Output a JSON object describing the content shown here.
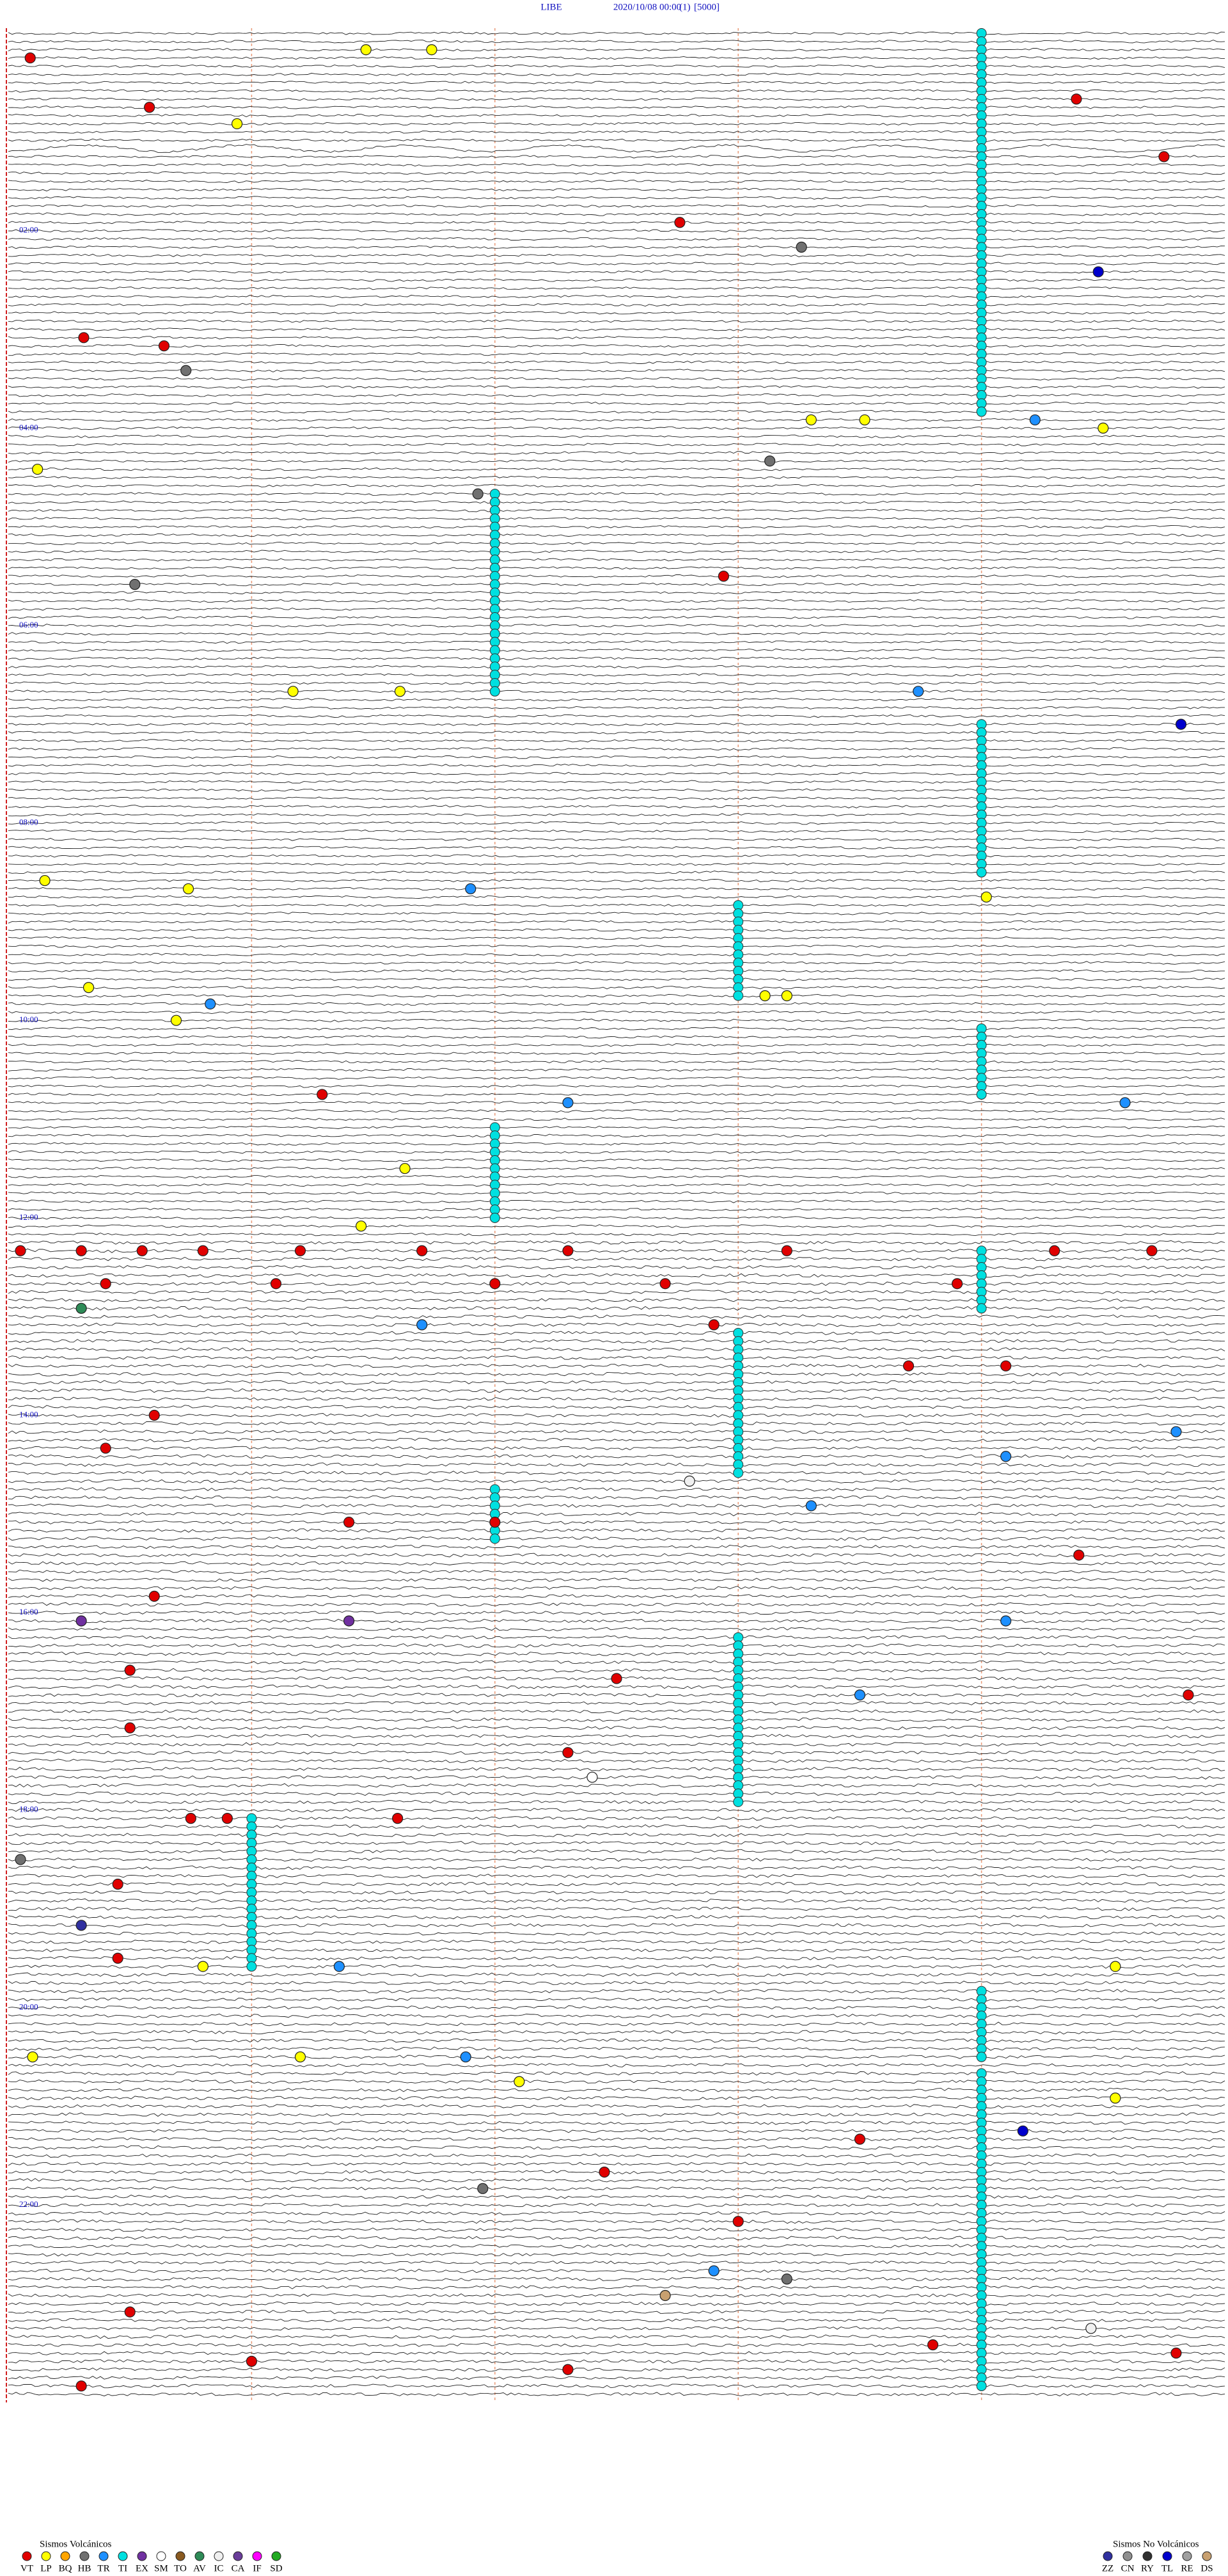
{
  "header": {
    "station": "LIBE",
    "datetime": "2020/10/08 00:00",
    "channel": "(1)",
    "scale": "[5000]"
  },
  "hour_labels": [
    {
      "row": 24,
      "label": "02:00"
    },
    {
      "row": 48,
      "label": "04:00"
    },
    {
      "row": 72,
      "label": "06:00"
    },
    {
      "row": 96,
      "label": "08:00"
    },
    {
      "row": 120,
      "label": "10:00"
    },
    {
      "row": 144,
      "label": "12:00"
    },
    {
      "row": 168,
      "label": "14:00"
    },
    {
      "row": 192,
      "label": "16:00"
    },
    {
      "row": 216,
      "label": "18:00"
    },
    {
      "row": 240,
      "label": "20:00"
    },
    {
      "row": 264,
      "label": "22:00"
    }
  ],
  "legend": {
    "volcanic": {
      "title": "Sismos Volcánicos",
      "items": [
        {
          "code": "VT",
          "color": "#e00000"
        },
        {
          "code": "LP",
          "color": "#ffff00"
        },
        {
          "code": "BQ",
          "color": "#ffa500"
        },
        {
          "code": "HB",
          "color": "#707070"
        },
        {
          "code": "TR",
          "color": "#1e90ff"
        },
        {
          "code": "TI",
          "color": "#00e0e0"
        },
        {
          "code": "EX",
          "color": "#7030a0"
        },
        {
          "code": "SM",
          "color": "#ffffff"
        },
        {
          "code": "TO",
          "color": "#8a5a20"
        },
        {
          "code": "AV",
          "color": "#2e8b57"
        },
        {
          "code": "IC",
          "color": "#f0f0f0"
        },
        {
          "code": "CA",
          "color": "#6a3d9a"
        },
        {
          "code": "IF",
          "color": "#ff00ff"
        },
        {
          "code": "SD",
          "color": "#22aa22"
        }
      ]
    },
    "non_volcanic": {
      "title": "Sismos No Volcánicos",
      "items": [
        {
          "code": "ZZ",
          "color": "#3030a0"
        },
        {
          "code": "CN",
          "color": "#909090"
        },
        {
          "code": "RY",
          "color": "#303030"
        },
        {
          "code": "TL",
          "color": "#0000cc"
        },
        {
          "code": "RE",
          "color": "#a0a0a0"
        },
        {
          "code": "DS",
          "color": "#c8a070"
        }
      ]
    }
  },
  "tremor_runs": [
    {
      "minute": 4.0,
      "row_start": 0,
      "row_end": 46
    },
    {
      "minute": 2.0,
      "row_start": 56,
      "row_end": 80
    },
    {
      "minute": 4.0,
      "row_start": 84,
      "row_end": 102
    },
    {
      "minute": 3.0,
      "row_start": 106,
      "row_end": 117
    },
    {
      "minute": 4.0,
      "row_start": 121,
      "row_end": 129
    },
    {
      "minute": 2.0,
      "row_start": 133,
      "row_end": 144
    },
    {
      "minute": 4.0,
      "row_start": 148,
      "row_end": 155
    },
    {
      "minute": 3.0,
      "row_start": 158,
      "row_end": 175
    },
    {
      "minute": 2.0,
      "row_start": 177,
      "row_end": 183
    },
    {
      "minute": 3.0,
      "row_start": 195,
      "row_end": 215
    },
    {
      "minute": 1.0,
      "row_start": 217,
      "row_end": 235
    },
    {
      "minute": 4.0,
      "row_start": 238,
      "row_end": 246
    },
    {
      "minute": 4.0,
      "row_start": 248,
      "row_end": 286
    }
  ],
  "events": [
    {
      "row": 3,
      "minute": 0.09,
      "type": "VT"
    },
    {
      "row": 2,
      "minute": 1.47,
      "type": "LP"
    },
    {
      "row": 2,
      "minute": 1.74,
      "type": "LP"
    },
    {
      "row": 9,
      "minute": 0.58,
      "type": "VT"
    },
    {
      "row": 11,
      "minute": 0.94,
      "type": "LP"
    },
    {
      "row": 8,
      "minute": 4.39,
      "type": "VT"
    },
    {
      "row": 15,
      "minute": 4.75,
      "type": "VT"
    },
    {
      "row": 23,
      "minute": 2.76,
      "type": "VT"
    },
    {
      "row": 26,
      "minute": 3.26,
      "type": "HB"
    },
    {
      "row": 29,
      "minute": 4.48,
      "type": "TL"
    },
    {
      "row": 37,
      "minute": 0.31,
      "type": "VT"
    },
    {
      "row": 38,
      "minute": 0.64,
      "type": "VT"
    },
    {
      "row": 41,
      "minute": 0.73,
      "type": "HB"
    },
    {
      "row": 47,
      "minute": 3.3,
      "type": "LP"
    },
    {
      "row": 47,
      "minute": 3.52,
      "type": "LP"
    },
    {
      "row": 47,
      "minute": 4.22,
      "type": "TR"
    },
    {
      "row": 48,
      "minute": 4.5,
      "type": "LP"
    },
    {
      "row": 53,
      "minute": 0.12,
      "type": "LP"
    },
    {
      "row": 52,
      "minute": 3.13,
      "type": "HB"
    },
    {
      "row": 56,
      "minute": 1.93,
      "type": "HB"
    },
    {
      "row": 67,
      "minute": 0.52,
      "type": "HB"
    },
    {
      "row": 66,
      "minute": 2.94,
      "type": "VT"
    },
    {
      "row": 80,
      "minute": 1.17,
      "type": "LP"
    },
    {
      "row": 80,
      "minute": 1.61,
      "type": "LP"
    },
    {
      "row": 80,
      "minute": 3.74,
      "type": "TR"
    },
    {
      "row": 84,
      "minute": 4.82,
      "type": "TL"
    },
    {
      "row": 103,
      "minute": 0.15,
      "type": "LP"
    },
    {
      "row": 104,
      "minute": 0.74,
      "type": "LP"
    },
    {
      "row": 104,
      "minute": 1.9,
      "type": "TR"
    },
    {
      "row": 105,
      "minute": 4.02,
      "type": "LP"
    },
    {
      "row": 116,
      "minute": 0.33,
      "type": "LP"
    },
    {
      "row": 118,
      "minute": 0.83,
      "type": "TR"
    },
    {
      "row": 117,
      "minute": 3.11,
      "type": "LP"
    },
    {
      "row": 117,
      "minute": 3.2,
      "type": "LP"
    },
    {
      "row": 120,
      "minute": 0.69,
      "type": "LP"
    },
    {
      "row": 129,
      "minute": 1.29,
      "type": "VT"
    },
    {
      "row": 130,
      "minute": 2.3,
      "type": "TR"
    },
    {
      "row": 130,
      "minute": 4.59,
      "type": "TR"
    },
    {
      "row": 138,
      "minute": 1.63,
      "type": "LP"
    },
    {
      "row": 145,
      "minute": 1.45,
      "type": "LP"
    },
    {
      "row": 148,
      "minute": 0.05,
      "type": "VT"
    },
    {
      "row": 148,
      "minute": 0.3,
      "type": "VT"
    },
    {
      "row": 148,
      "minute": 0.55,
      "type": "VT"
    },
    {
      "row": 148,
      "minute": 0.8,
      "type": "VT"
    },
    {
      "row": 148,
      "minute": 1.2,
      "type": "VT"
    },
    {
      "row": 148,
      "minute": 1.7,
      "type": "VT"
    },
    {
      "row": 148,
      "minute": 2.3,
      "type": "VT"
    },
    {
      "row": 148,
      "minute": 3.2,
      "type": "VT"
    },
    {
      "row": 148,
      "minute": 4.3,
      "type": "VT"
    },
    {
      "row": 148,
      "minute": 4.7,
      "type": "VT"
    },
    {
      "row": 152,
      "minute": 0.4,
      "type": "VT"
    },
    {
      "row": 152,
      "minute": 1.1,
      "type": "VT"
    },
    {
      "row": 152,
      "minute": 2.0,
      "type": "VT"
    },
    {
      "row": 152,
      "minute": 2.7,
      "type": "VT"
    },
    {
      "row": 152,
      "minute": 3.9,
      "type": "VT"
    },
    {
      "row": 155,
      "minute": 0.3,
      "type": "AV"
    },
    {
      "row": 157,
      "minute": 1.7,
      "type": "TR"
    },
    {
      "row": 157,
      "minute": 2.9,
      "type": "VT"
    },
    {
      "row": 162,
      "minute": 3.7,
      "type": "VT"
    },
    {
      "row": 162,
      "minute": 4.1,
      "type": "VT"
    },
    {
      "row": 168,
      "minute": 0.6,
      "type": "VT"
    },
    {
      "row": 170,
      "minute": 4.8,
      "type": "TR"
    },
    {
      "row": 172,
      "minute": 0.4,
      "type": "VT"
    },
    {
      "row": 173,
      "minute": 4.1,
      "type": "TR"
    },
    {
      "row": 176,
      "minute": 2.8,
      "type": "IC"
    },
    {
      "row": 179,
      "minute": 3.3,
      "type": "TR"
    },
    {
      "row": 181,
      "minute": 1.4,
      "type": "VT"
    },
    {
      "row": 181,
      "minute": 2.0,
      "type": "VT"
    },
    {
      "row": 185,
      "minute": 4.4,
      "type": "VT"
    },
    {
      "row": 190,
      "minute": 0.6,
      "type": "VT"
    },
    {
      "row": 193,
      "minute": 0.3,
      "type": "EX"
    },
    {
      "row": 193,
      "minute": 1.4,
      "type": "EX"
    },
    {
      "row": 193,
      "minute": 4.1,
      "type": "TR"
    },
    {
      "row": 199,
      "minute": 0.5,
      "type": "VT"
    },
    {
      "row": 200,
      "minute": 2.5,
      "type": "VT"
    },
    {
      "row": 202,
      "minute": 3.5,
      "type": "TR"
    },
    {
      "row": 202,
      "minute": 4.85,
      "type": "VT"
    },
    {
      "row": 206,
      "minute": 0.5,
      "type": "VT"
    },
    {
      "row": 209,
      "minute": 2.3,
      "type": "VT"
    },
    {
      "row": 212,
      "minute": 2.4,
      "type": "SM"
    },
    {
      "row": 217,
      "minute": 0.75,
      "type": "VT"
    },
    {
      "row": 217,
      "minute": 0.9,
      "type": "VT"
    },
    {
      "row": 217,
      "minute": 1.6,
      "type": "VT"
    },
    {
      "row": 222,
      "minute": 0.05,
      "type": "HB"
    },
    {
      "row": 225,
      "minute": 0.45,
      "type": "VT"
    },
    {
      "row": 230,
      "minute": 0.3,
      "type": "ZZ"
    },
    {
      "row": 234,
      "minute": 0.45,
      "type": "VT"
    },
    {
      "row": 235,
      "minute": 0.8,
      "type": "LP"
    },
    {
      "row": 235,
      "minute": 1.36,
      "type": "TR"
    },
    {
      "row": 235,
      "minute": 4.55,
      "type": "LP"
    },
    {
      "row": 246,
      "minute": 0.1,
      "type": "LP"
    },
    {
      "row": 246,
      "minute": 1.2,
      "type": "LP"
    },
    {
      "row": 246,
      "minute": 1.88,
      "type": "TR"
    },
    {
      "row": 249,
      "minute": 2.1,
      "type": "LP"
    },
    {
      "row": 251,
      "minute": 4.55,
      "type": "LP"
    },
    {
      "row": 255,
      "minute": 4.17,
      "type": "TL"
    },
    {
      "row": 256,
      "minute": 3.5,
      "type": "VT"
    },
    {
      "row": 260,
      "minute": 2.45,
      "type": "VT"
    },
    {
      "row": 262,
      "minute": 1.95,
      "type": "HB"
    },
    {
      "row": 266,
      "minute": 3.0,
      "type": "VT"
    },
    {
      "row": 272,
      "minute": 2.9,
      "type": "TR"
    },
    {
      "row": 273,
      "minute": 3.2,
      "type": "HB"
    },
    {
      "row": 275,
      "minute": 2.7,
      "type": "DS"
    },
    {
      "row": 277,
      "minute": 0.5,
      "type": "VT"
    },
    {
      "row": 279,
      "minute": 4.45,
      "type": "IC"
    },
    {
      "row": 282,
      "minute": 4.8,
      "type": "VT"
    },
    {
      "row": 283,
      "minute": 1.0,
      "type": "VT"
    },
    {
      "row": 284,
      "minute": 2.3,
      "type": "VT"
    },
    {
      "row": 281,
      "minute": 3.8,
      "type": "VT"
    },
    {
      "row": 286,
      "minute": 0.3,
      "type": "VT"
    }
  ]
}
